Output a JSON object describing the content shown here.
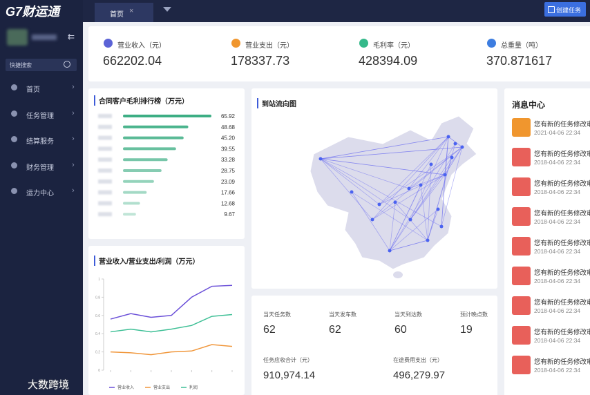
{
  "header": {
    "logo": "G7财运通",
    "tab": "首页",
    "button": "创建任务"
  },
  "sidebar": {
    "search": "快捷搜索",
    "menu": [
      "首页",
      "任务管理",
      "结算服务",
      "财务管理",
      "运力中心"
    ]
  },
  "kpis": [
    {
      "label": "营业收入（元）",
      "value": "662202.04",
      "color": "#5b63d6"
    },
    {
      "label": "营业支出（元）",
      "value": "178337.73",
      "color": "#f0962e"
    },
    {
      "label": "毛利率（元）",
      "value": "428394.09",
      "color": "#35b98a"
    },
    {
      "label": "总重量（吨）",
      "value": "370.871617",
      "color": "#3d7de0"
    }
  ],
  "chart_data": [
    {
      "type": "bar",
      "orientation": "horizontal",
      "title": "合同客户毛利排行榜（万元）",
      "color": "#3dae84",
      "categories": [
        null,
        null,
        null,
        null,
        null,
        null,
        null,
        null,
        null,
        null
      ],
      "values": [
        65.92,
        48.68,
        45.2,
        39.55,
        33.28,
        28.75,
        23.09,
        17.66,
        12.68,
        9.67
      ],
      "value_labels": [
        "65.92",
        "48.68",
        "45.20",
        "39.55",
        "33.28",
        "28.75",
        "23.09",
        "17.66",
        "12.68",
        "9.67"
      ]
    },
    {
      "type": "line",
      "title": "营业收入/营业支出/利润（万元）",
      "categories": [
        null,
        null,
        null,
        null,
        null,
        null,
        null
      ],
      "ylim": [
        0,
        1
      ],
      "yticks": [
        0,
        0.2,
        0.4,
        0.6,
        0.8,
        1
      ],
      "legend": "bottom",
      "series": [
        {
          "name": "营业收入",
          "color": "#6a4fd8",
          "values": [
            0.56,
            0.62,
            0.58,
            0.6,
            0.8,
            0.92,
            0.93
          ]
        },
        {
          "name": "营业支出",
          "color": "#f0963a",
          "values": [
            0.2,
            0.19,
            0.17,
            0.2,
            0.21,
            0.28,
            0.26
          ]
        },
        {
          "name": "利润",
          "color": "#3dbf95",
          "values": [
            0.42,
            0.45,
            0.42,
            0.45,
            0.49,
            0.59,
            0.61
          ]
        }
      ]
    }
  ],
  "map": {
    "title": "到站流向图"
  },
  "stats": [
    {
      "label": "当天任务数",
      "value": "62"
    },
    {
      "label": "当天发车数",
      "value": "62"
    },
    {
      "label": "当天到达数",
      "value": "60"
    },
    {
      "label": "预计晚点数",
      "value": "19"
    },
    {
      "label": "任务应收合计（元）",
      "value": "910,974.14"
    },
    {
      "label": "在途费用支出（元）",
      "value": "496,279.97"
    }
  ],
  "messages": {
    "title": "消息中心",
    "items": [
      {
        "text": "您有新的任务修改审",
        "time": "2021-04-06  22:34"
      },
      {
        "text": "您有新的任务修改审",
        "time": "2018-04-06  22:34"
      },
      {
        "text": "您有新的任务修改审",
        "time": "2018-04-06  22:34"
      },
      {
        "text": "您有新的任务修改审",
        "time": "2018-04-06  22:34"
      },
      {
        "text": "您有新的任务修改审",
        "time": "2018-04-06  22:34"
      },
      {
        "text": "您有新的任务修改审",
        "time": "2018-04-06  22:34"
      },
      {
        "text": "您有新的任务修改审",
        "time": "2018-04-06  22:34"
      },
      {
        "text": "您有新的任务修改审",
        "time": "2018-04-06  22:34"
      },
      {
        "text": "您有新的任务修改审",
        "time": "2018-04-06  22:34"
      }
    ]
  },
  "watermark": "大数跨境"
}
